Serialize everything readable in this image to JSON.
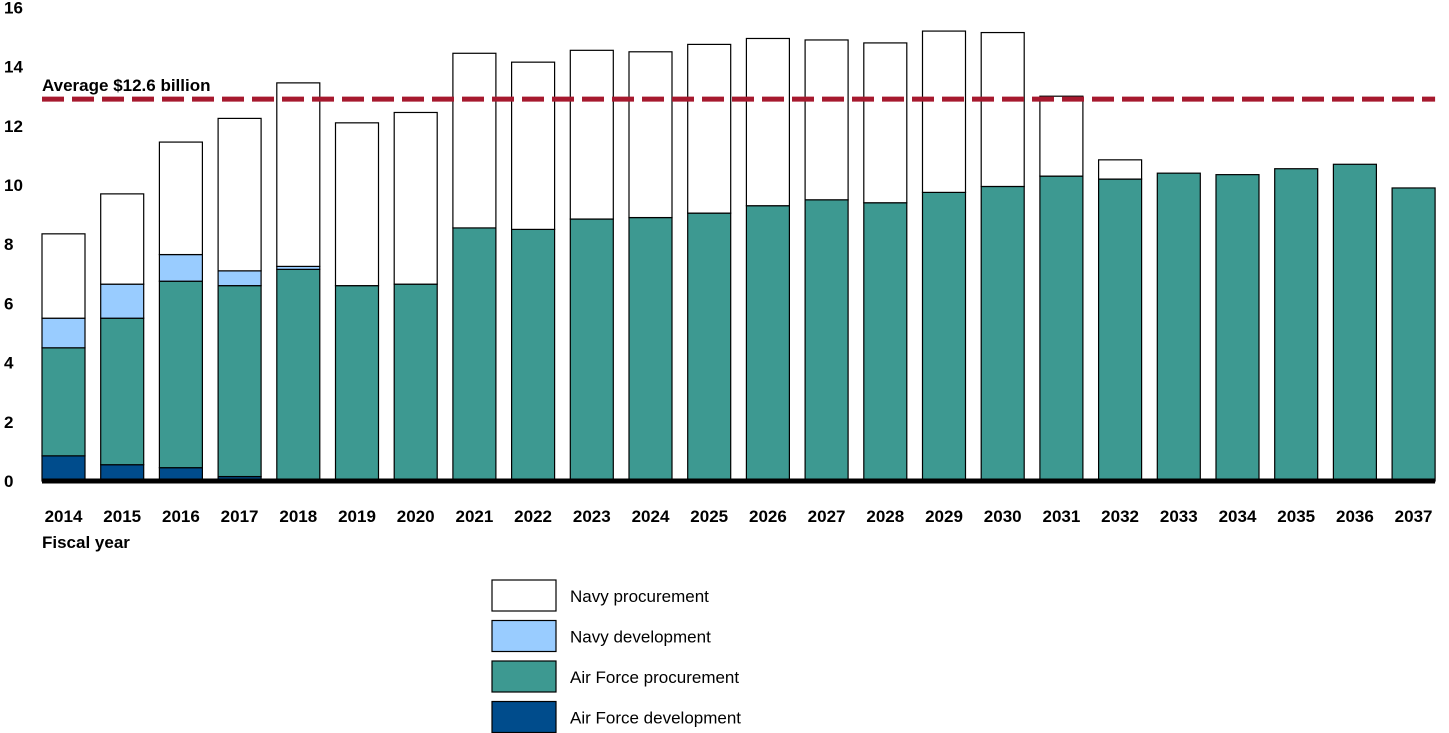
{
  "chart_data": {
    "type": "bar",
    "stacked": true,
    "title": "",
    "xlabel": "Fiscal year",
    "ylabel": "",
    "ylim": [
      0,
      16
    ],
    "yticks": [
      0,
      2,
      4,
      6,
      8,
      10,
      12,
      14,
      16
    ],
    "grid": false,
    "legend_position": "bottom-center",
    "categories": [
      "2014",
      "2015",
      "2016",
      "2017",
      "2018",
      "2019",
      "2020",
      "2021",
      "2022",
      "2023",
      "2024",
      "2025",
      "2026",
      "2027",
      "2028",
      "2029",
      "2030",
      "2031",
      "2032",
      "2033",
      "2034",
      "2035",
      "2036",
      "2037"
    ],
    "series": [
      {
        "name": "Air Force development",
        "color": "#004C8C",
        "values": [
          0.85,
          0.55,
          0.45,
          0.15,
          0.05,
          0,
          0,
          0,
          0,
          0,
          0,
          0,
          0,
          0,
          0,
          0,
          0,
          0,
          0,
          0,
          0,
          0,
          0,
          0
        ]
      },
      {
        "name": "Air Force procurement",
        "color": "#3D9991",
        "values": [
          3.65,
          4.95,
          6.3,
          6.45,
          7.1,
          6.6,
          6.65,
          8.55,
          8.5,
          8.85,
          8.9,
          9.05,
          9.3,
          9.5,
          9.4,
          9.75,
          9.95,
          10.3,
          10.2,
          10.4,
          10.35,
          10.55,
          10.7,
          9.9
        ]
      },
      {
        "name": "Navy development",
        "color": "#99CCFF",
        "values": [
          1.0,
          1.15,
          0.9,
          0.5,
          0.1,
          0,
          0,
          0,
          0,
          0,
          0,
          0,
          0,
          0,
          0,
          0,
          0,
          0,
          0,
          0,
          0,
          0,
          0,
          0
        ]
      },
      {
        "name": "Navy procurement",
        "color": "#FFFFFF",
        "values": [
          2.85,
          3.05,
          3.8,
          5.15,
          6.2,
          5.5,
          5.8,
          5.9,
          5.65,
          5.7,
          5.6,
          5.7,
          5.65,
          5.4,
          5.4,
          5.45,
          5.2,
          2.7,
          0.65,
          0,
          0,
          0,
          0,
          0
        ]
      }
    ],
    "reference_line": {
      "value": 12.6,
      "label": "Average $12.6 billion",
      "color": "#A6192E",
      "style": "dashed"
    },
    "legend_order": [
      "Navy procurement",
      "Navy development",
      "Air Force procurement",
      "Air Force development"
    ]
  }
}
